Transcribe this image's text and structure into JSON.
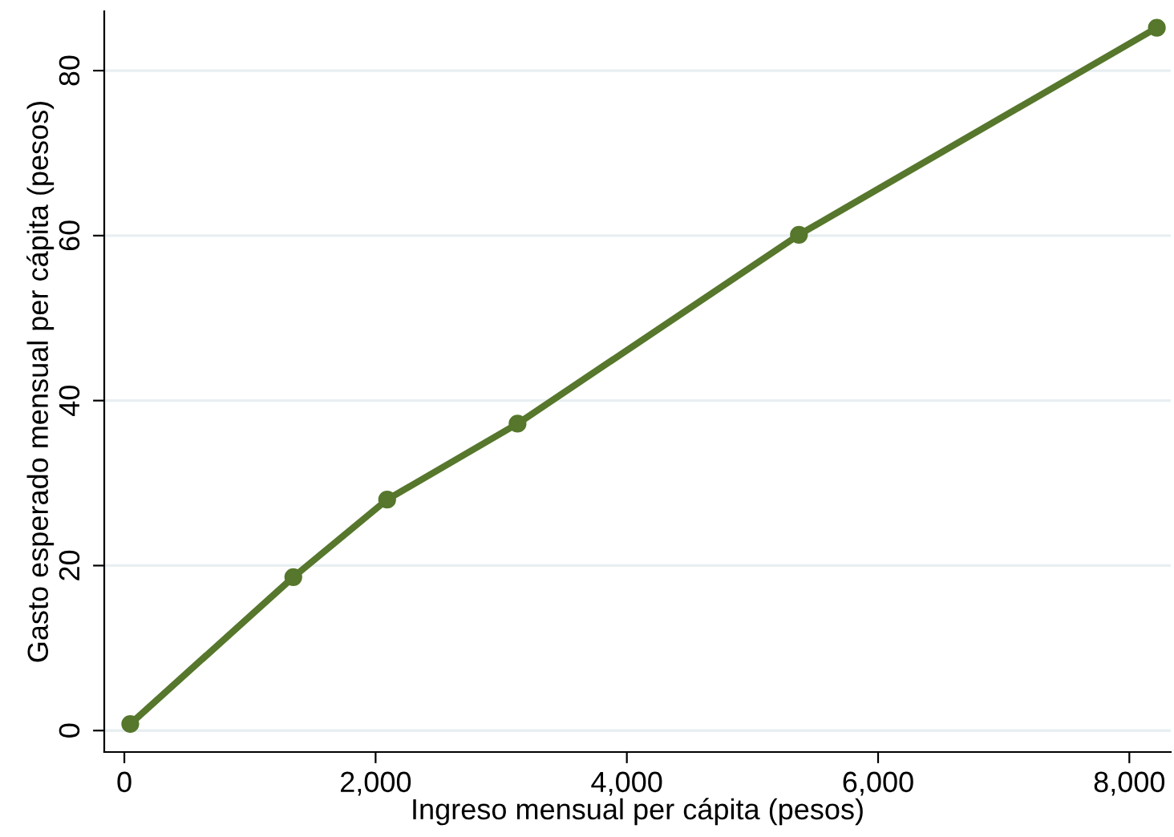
{
  "chart_data": {
    "type": "line",
    "xlabel": "Ingreso mensual per cápita (pesos)",
    "ylabel": "Gasto esperado mensual per cápita (pesos)",
    "x": [
      47,
      1345,
      2092,
      3130,
      5370,
      8219
    ],
    "series": [
      {
        "color": "#56772c",
        "values": [
          0.8,
          18.6,
          28.0,
          37.2,
          60.1,
          85.2
        ]
      }
    ],
    "xlim": [
      -160,
      8330
    ],
    "ylim": [
      -2.6,
      87.2
    ],
    "xticks": [
      {
        "value": 0,
        "label": "0"
      },
      {
        "value": 2000,
        "label": "2,000"
      },
      {
        "value": 4000,
        "label": "4,000"
      },
      {
        "value": 6000,
        "label": "6,000"
      },
      {
        "value": 8000,
        "label": "8,000"
      }
    ],
    "yticks": [
      0,
      20,
      40,
      60,
      80
    ],
    "grid": "y",
    "marker": "circle",
    "line_style": "solid"
  }
}
